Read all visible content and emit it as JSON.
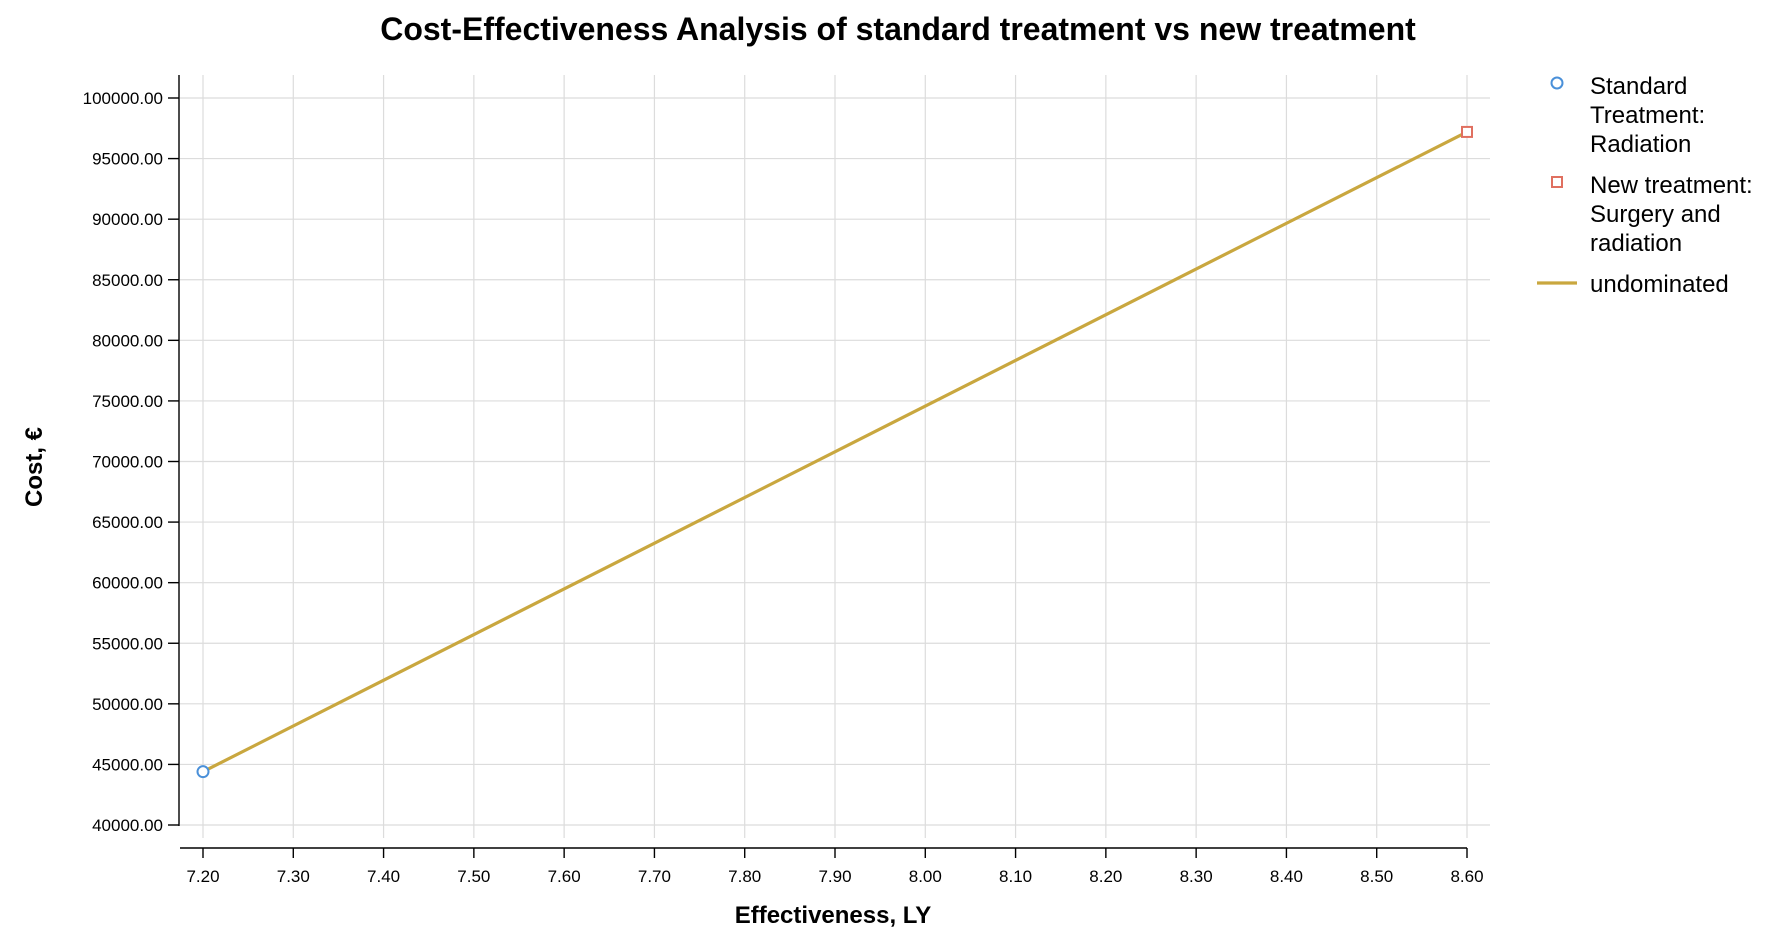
{
  "chart_data": {
    "type": "line",
    "title": "Cost-Effectiveness Analysis of standard treatment vs new treatment",
    "xlabel": "Effectiveness, LY",
    "ylabel": "Cost, €",
    "xlim": [
      7.2,
      8.6
    ],
    "ylim": [
      40000,
      100000
    ],
    "x_ticks": [
      "7.20",
      "7.30",
      "7.40",
      "7.50",
      "7.60",
      "7.70",
      "7.80",
      "7.90",
      "8.00",
      "8.10",
      "8.20",
      "8.30",
      "8.40",
      "8.50",
      "8.60"
    ],
    "y_ticks": [
      "40000.00",
      "45000.00",
      "50000.00",
      "55000.00",
      "60000.00",
      "65000.00",
      "70000.00",
      "75000.00",
      "80000.00",
      "85000.00",
      "90000.00",
      "95000.00",
      "100000.00"
    ],
    "grid": true,
    "legend_position": "right",
    "series": [
      {
        "name": "Standard Treatment: Radiation",
        "legend_lines": [
          "Standard",
          "Treatment:",
          "Radiation"
        ],
        "kind": "scatter",
        "marker": "circle",
        "color": "#4a90d9",
        "points": [
          {
            "x": 7.2,
            "y": 44400
          }
        ]
      },
      {
        "name": "New treatment: Surgery and radiation",
        "legend_lines": [
          "New treatment:",
          "Surgery and",
          "radiation"
        ],
        "kind": "scatter",
        "marker": "square",
        "color": "#e07060",
        "points": [
          {
            "x": 8.6,
            "y": 97200
          }
        ]
      },
      {
        "name": "undominated",
        "legend_lines": [
          "undominated"
        ],
        "kind": "line",
        "color": "#c9a73f",
        "points": [
          {
            "x": 7.2,
            "y": 44400
          },
          {
            "x": 8.6,
            "y": 97200
          }
        ]
      }
    ]
  }
}
